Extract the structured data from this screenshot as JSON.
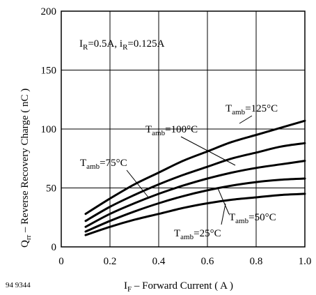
{
  "chart_data": {
    "type": "line",
    "xlabel": {
      "main": "I",
      "sub": "F",
      "rest": " – Forward Current ( A )"
    },
    "ylabel": {
      "main": "Q",
      "sub": "rr",
      "rest": " – Reverse Recovery Charge ( nC )"
    },
    "xlim": [
      0,
      1.0
    ],
    "ylim": [
      0,
      200
    ],
    "x_ticks": [
      "0",
      "0.2",
      "0.4",
      "0.6",
      "0.8",
      "1.0"
    ],
    "y_ticks": [
      "0",
      "50",
      "100",
      "150",
      "200"
    ],
    "grid": true,
    "condition": {
      "p1": "I",
      "s1": "R",
      "p2": "=0.5A, i",
      "s2": "R",
      "p3": "=0.125A"
    },
    "figure_code": "94 9344",
    "series": [
      {
        "name": "Tamb=125°C",
        "label_parts": [
          "T",
          "amb",
          "=125°C"
        ],
        "x": [
          0.1,
          0.2,
          0.3,
          0.4,
          0.5,
          0.6,
          0.7,
          0.8,
          0.9,
          1.0
        ],
        "y": [
          28,
          41,
          53,
          63,
          73,
          81,
          89,
          95,
          101,
          107
        ]
      },
      {
        "name": "Tamb=100°C",
        "label_parts": [
          "T",
          "amb",
          "=100°C"
        ],
        "x": [
          0.1,
          0.2,
          0.3,
          0.4,
          0.5,
          0.6,
          0.7,
          0.8,
          0.9,
          1.0
        ],
        "y": [
          22,
          34,
          44,
          53,
          61,
          68,
          75,
          80,
          85,
          88
        ]
      },
      {
        "name": "Tamb=75°C",
        "label_parts": [
          "T",
          "amb",
          "=75°C"
        ],
        "x": [
          0.1,
          0.2,
          0.3,
          0.4,
          0.5,
          0.6,
          0.7,
          0.8,
          0.9,
          1.0
        ],
        "y": [
          17,
          28,
          37,
          45,
          52,
          58,
          63,
          67,
          70,
          73
        ]
      },
      {
        "name": "Tamb=50°C",
        "label_parts": [
          "T",
          "amb",
          "=50°C"
        ],
        "x": [
          0.1,
          0.2,
          0.3,
          0.4,
          0.5,
          0.6,
          0.7,
          0.8,
          0.9,
          1.0
        ],
        "y": [
          13,
          22,
          30,
          37,
          43,
          48,
          52,
          55,
          57,
          58
        ]
      },
      {
        "name": "Tamb=25°C",
        "label_parts": [
          "T",
          "amb",
          "=25°C"
        ],
        "x": [
          0.1,
          0.2,
          0.3,
          0.4,
          0.5,
          0.6,
          0.7,
          0.8,
          0.9,
          1.0
        ],
        "y": [
          10,
          17,
          23,
          28,
          33,
          37,
          40,
          42,
          44,
          45
        ]
      }
    ]
  }
}
